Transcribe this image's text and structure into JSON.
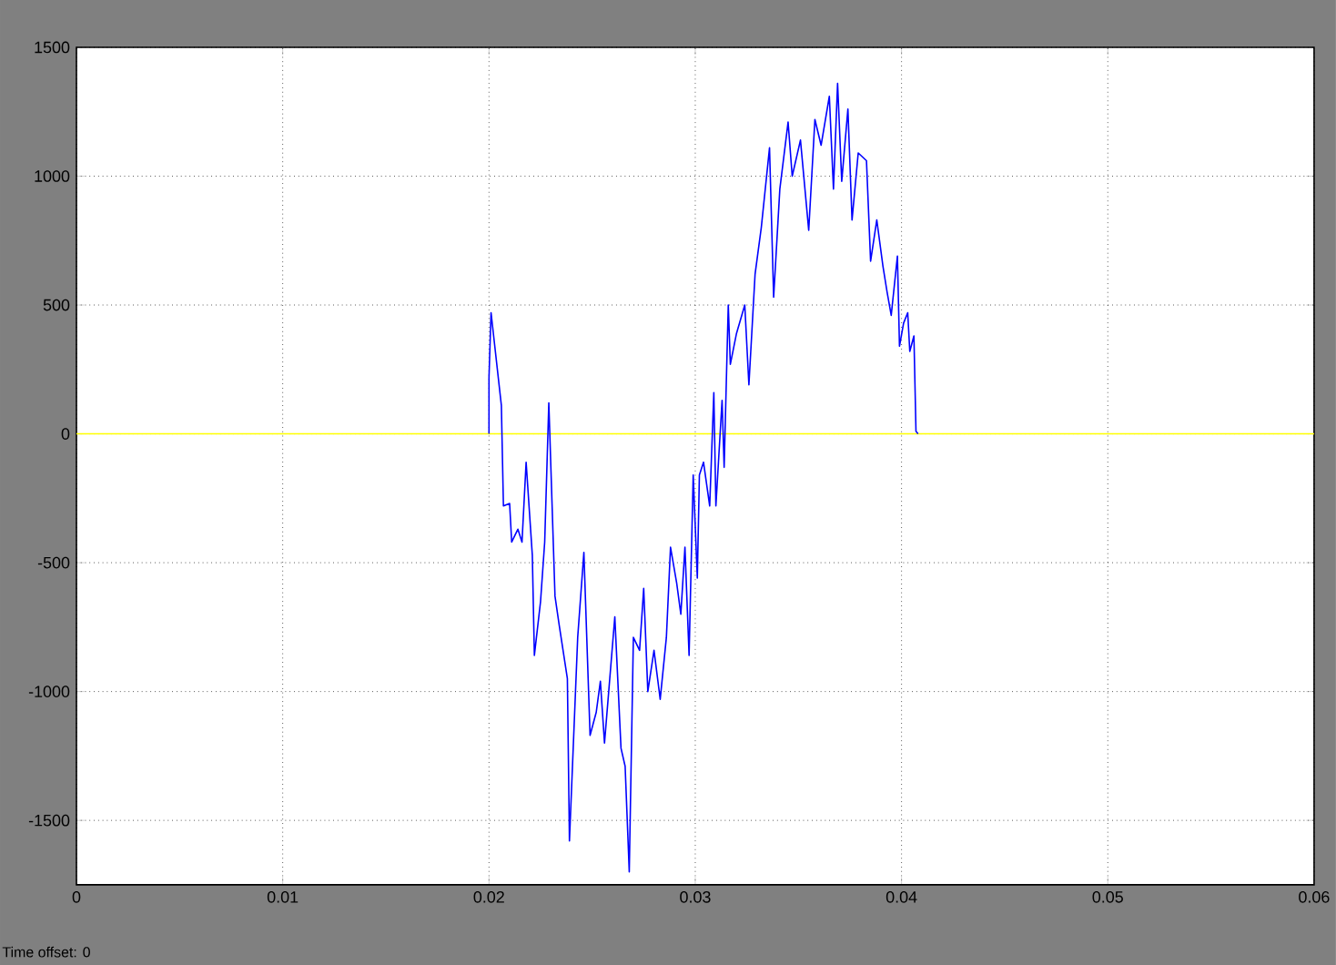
{
  "chart_data": {
    "type": "line",
    "x": [
      0.02,
      0.02,
      0.0201,
      0.0206,
      0.0207,
      0.021,
      0.0211,
      0.0214,
      0.0216,
      0.0218,
      0.0221,
      0.0222,
      0.0225,
      0.0227,
      0.0229,
      0.0232,
      0.0234,
      0.0238,
      0.0239,
      0.0243,
      0.0246,
      0.0249,
      0.0252,
      0.0254,
      0.0256,
      0.0261,
      0.0264,
      0.0266,
      0.0268,
      0.027,
      0.0273,
      0.0275,
      0.0277,
      0.028,
      0.0283,
      0.0286,
      0.0288,
      0.0291,
      0.0293,
      0.0295,
      0.0297,
      0.0299,
      0.0301,
      0.0302,
      0.0304,
      0.0307,
      0.0309,
      0.031,
      0.0313,
      0.0314,
      0.0316,
      0.0317,
      0.032,
      0.0324,
      0.0326,
      0.0329,
      0.0332,
      0.0336,
      0.0338,
      0.0341,
      0.0345,
      0.0347,
      0.0351,
      0.0355,
      0.0358,
      0.0361,
      0.0365,
      0.0367,
      0.0369,
      0.0371,
      0.0374,
      0.0376,
      0.0379,
      0.0383,
      0.0385,
      0.0388,
      0.0391,
      0.0393,
      0.0395,
      0.0398,
      0.0399,
      0.0401,
      0.0403,
      0.0404,
      0.0406,
      0.0407,
      0.0408
    ],
    "series": [
      {
        "color": "#0000ff",
        "values": [
          0,
          220,
          470,
          110,
          -280,
          -270,
          -420,
          -370,
          -420,
          -110,
          -470,
          -860,
          -650,
          -420,
          120,
          -630,
          -740,
          -950,
          -1580,
          -790,
          -460,
          -1170,
          -1080,
          -960,
          -1200,
          -710,
          -1220,
          -1290,
          -1700,
          -790,
          -840,
          -600,
          -1000,
          -840,
          -1030,
          -790,
          -440,
          -580,
          -700,
          -440,
          -860,
          -160,
          -560,
          -160,
          -110,
          -280,
          160,
          -280,
          130,
          -130,
          500,
          270,
          390,
          500,
          190,
          620,
          800,
          1110,
          530,
          950,
          1210,
          1000,
          1140,
          790,
          1220,
          1120,
          1310,
          950,
          1360,
          980,
          1260,
          830,
          1090,
          1060,
          670,
          830,
          650,
          550,
          460,
          690,
          340,
          430,
          470,
          320,
          380,
          10,
          0
        ]
      }
    ],
    "xlim": [
      0,
      0.06
    ],
    "ylim": [
      -1750,
      1500
    ],
    "xticks": [
      0,
      0.01,
      0.02,
      0.03,
      0.04,
      0.05,
      0.06
    ],
    "yticks": [
      -1500,
      -1000,
      -500,
      0,
      500,
      1000,
      1500
    ],
    "grid": true,
    "ref_lines": [
      {
        "axis": "y",
        "value": 0,
        "color": "#ffff00"
      }
    ],
    "annotations": [
      "Time offset:  0"
    ]
  }
}
